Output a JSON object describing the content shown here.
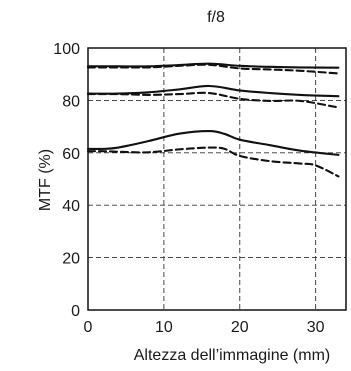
{
  "chart_data": {
    "type": "line",
    "title": "f/8",
    "xlabel": "Altezza dell’immagine (mm)",
    "ylabel": "MTF (%)",
    "xlim": [
      0,
      34
    ],
    "ylim": [
      0,
      100
    ],
    "x_ticks": [
      0,
      10,
      20,
      30
    ],
    "y_ticks": [
      0,
      20,
      40,
      60,
      80,
      100
    ],
    "grid": true,
    "series": [
      {
        "style": "solid",
        "x": [
          0,
          4,
          8,
          12,
          16,
          20,
          24,
          28,
          33
        ],
        "values": [
          93,
          93,
          93,
          93.5,
          94,
          93.2,
          92.8,
          92.6,
          92.5
        ]
      },
      {
        "style": "dashed",
        "x": [
          0,
          4,
          8,
          12,
          16,
          20,
          24,
          28,
          33
        ],
        "values": [
          92.6,
          92.6,
          92.6,
          93.2,
          93.6,
          92.2,
          91.8,
          91.3,
          90.3
        ]
      },
      {
        "style": "solid",
        "x": [
          0,
          4,
          8,
          12,
          16,
          20,
          24,
          28,
          33
        ],
        "values": [
          82.6,
          82.6,
          83.1,
          84.2,
          85.5,
          83.8,
          82.8,
          82.1,
          81.6
        ]
      },
      {
        "style": "dashed",
        "x": [
          0,
          4,
          8,
          12,
          16,
          20,
          24,
          28,
          33
        ],
        "values": [
          82.4,
          82.4,
          82.1,
          82.4,
          82.8,
          80.6,
          79.8,
          79.8,
          77.3
        ]
      },
      {
        "style": "solid",
        "x": [
          0,
          2,
          4,
          8,
          12,
          16,
          18,
          20,
          24,
          28,
          33
        ],
        "values": [
          61.5,
          61.5,
          62,
          64.5,
          67.3,
          68.3,
          67.2,
          65,
          62.9,
          60.8,
          59.2
        ]
      },
      {
        "style": "dashed",
        "x": [
          0,
          2,
          4,
          8,
          12,
          16,
          18,
          20,
          24,
          28,
          30,
          33
        ],
        "values": [
          60.6,
          60.6,
          60.4,
          60.2,
          61.3,
          62,
          61.5,
          58.8,
          56.8,
          55.9,
          55.2,
          51
        ]
      }
    ]
  }
}
